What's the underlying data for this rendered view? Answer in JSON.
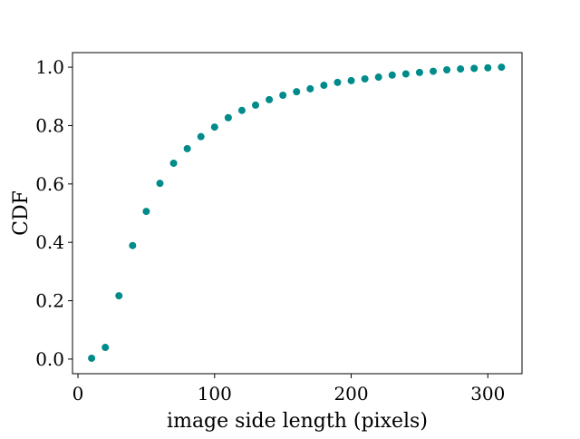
{
  "chart_data": {
    "type": "scatter",
    "title": "",
    "xlabel": "image side length (pixels)",
    "ylabel": "CDF",
    "xlim": [
      -4,
      325
    ],
    "ylim": [
      -0.05,
      1.05
    ],
    "x_ticks": [
      {
        "value": 0,
        "label": "0"
      },
      {
        "value": 100,
        "label": "100"
      },
      {
        "value": 200,
        "label": "200"
      },
      {
        "value": 300,
        "label": "300"
      }
    ],
    "y_ticks": [
      {
        "value": 0.0,
        "label": "0.0"
      },
      {
        "value": 0.2,
        "label": "0.2"
      },
      {
        "value": 0.4,
        "label": "0.4"
      },
      {
        "value": 0.6,
        "label": "0.6"
      },
      {
        "value": 0.8,
        "label": "0.8"
      },
      {
        "value": 1.0,
        "label": "1.0"
      }
    ],
    "grid": false,
    "legend": "none",
    "marker_color": "#008b8b",
    "series": [
      {
        "x": [
          10,
          20,
          30,
          40,
          50,
          60,
          70,
          80,
          90,
          100,
          110,
          120,
          130,
          140,
          150,
          160,
          170,
          180,
          190,
          200,
          210,
          220,
          230,
          240,
          250,
          260,
          270,
          280,
          290,
          300,
          310
        ],
        "y": [
          0.003,
          0.04,
          0.217,
          0.389,
          0.506,
          0.602,
          0.671,
          0.721,
          0.762,
          0.795,
          0.827,
          0.852,
          0.87,
          0.889,
          0.904,
          0.916,
          0.926,
          0.938,
          0.948,
          0.954,
          0.96,
          0.966,
          0.973,
          0.977,
          0.982,
          0.986,
          0.991,
          0.994,
          0.996,
          0.998,
          1.0
        ]
      }
    ]
  }
}
